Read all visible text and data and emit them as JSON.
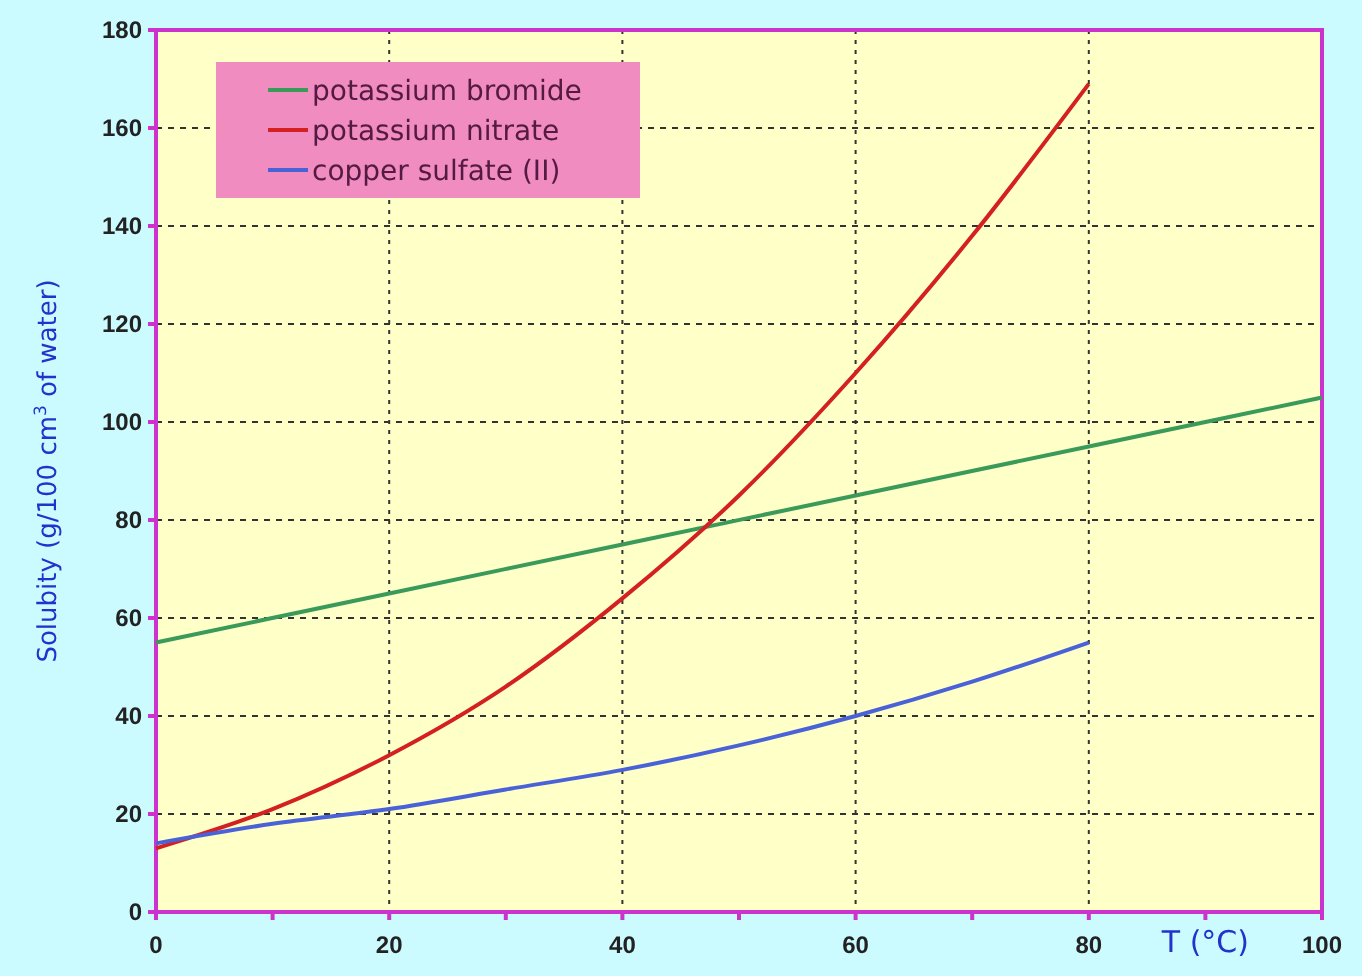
{
  "chart_data": {
    "type": "line",
    "xlabel": "T (°C)",
    "ylabel": "Solubity (g/100 cm$^{3}$ of water)",
    "xlim": [
      0,
      100
    ],
    "ylim": [
      0,
      180
    ],
    "xticks": [
      0,
      {
        "value": 10,
        "label": null
      },
      20,
      {
        "value": 30,
        "label": null
      },
      40,
      {
        "value": 50,
        "label": null
      },
      60,
      {
        "value": 70,
        "label": null
      },
      80,
      {
        "value": 90,
        "label": null
      },
      100
    ],
    "yticks": [
      0,
      20,
      40,
      60,
      80,
      100,
      120,
      140,
      160,
      180
    ],
    "grid": true,
    "legend": "top left",
    "line_style": "solid",
    "marker": "none",
    "series": [
      {
        "name": "potassium bromide",
        "color": "#3a9a5a",
        "x": [
          0,
          20,
          40,
          60,
          80,
          100
        ],
        "values": [
          55,
          65,
          75,
          85,
          95,
          105
        ]
      },
      {
        "name": "potassium nitrate",
        "color": "#d42020",
        "x": [
          0,
          10,
          20,
          30,
          40,
          50,
          60,
          70,
          80
        ],
        "values": [
          13,
          21,
          32,
          46,
          64,
          85,
          110,
          138,
          169
        ]
      },
      {
        "name": "copper sulfate (II)",
        "color": "#4a62d8",
        "x": [
          0,
          10,
          20,
          30,
          40,
          50,
          60,
          70,
          80
        ],
        "values": [
          14,
          18,
          21,
          25,
          29,
          34,
          40,
          47,
          55
        ]
      }
    ]
  }
}
